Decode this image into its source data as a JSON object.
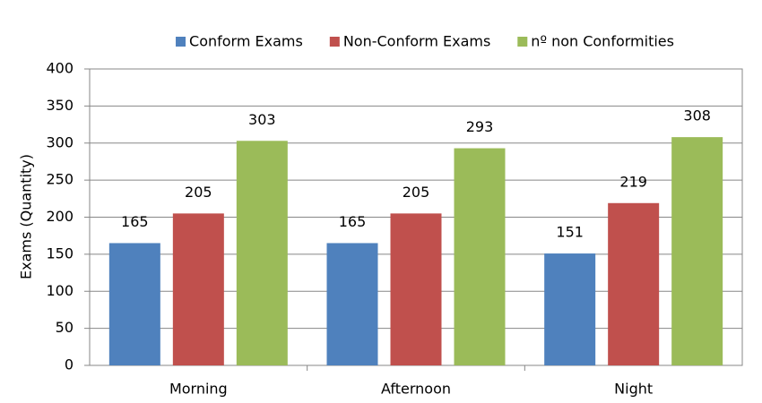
{
  "chart_data": {
    "type": "bar",
    "y_label": "Exams (Quantity)",
    "categories": [
      "Morning",
      "Afternoon",
      "Night"
    ],
    "series": [
      {
        "name": "Conform Exams",
        "color": "#4f81bd",
        "values": [
          165,
          165,
          151
        ]
      },
      {
        "name": "Non-Conform Exams",
        "color": "#c0504d",
        "values": [
          205,
          205,
          219
        ]
      },
      {
        "name": "nº non Conformities",
        "color": "#9bbb59",
        "values": [
          303,
          293,
          308
        ]
      }
    ],
    "ylim": [
      0,
      400
    ],
    "yticks": [
      0,
      50,
      100,
      150,
      200,
      250,
      300,
      350,
      400
    ],
    "grid": true,
    "legend": "top"
  }
}
